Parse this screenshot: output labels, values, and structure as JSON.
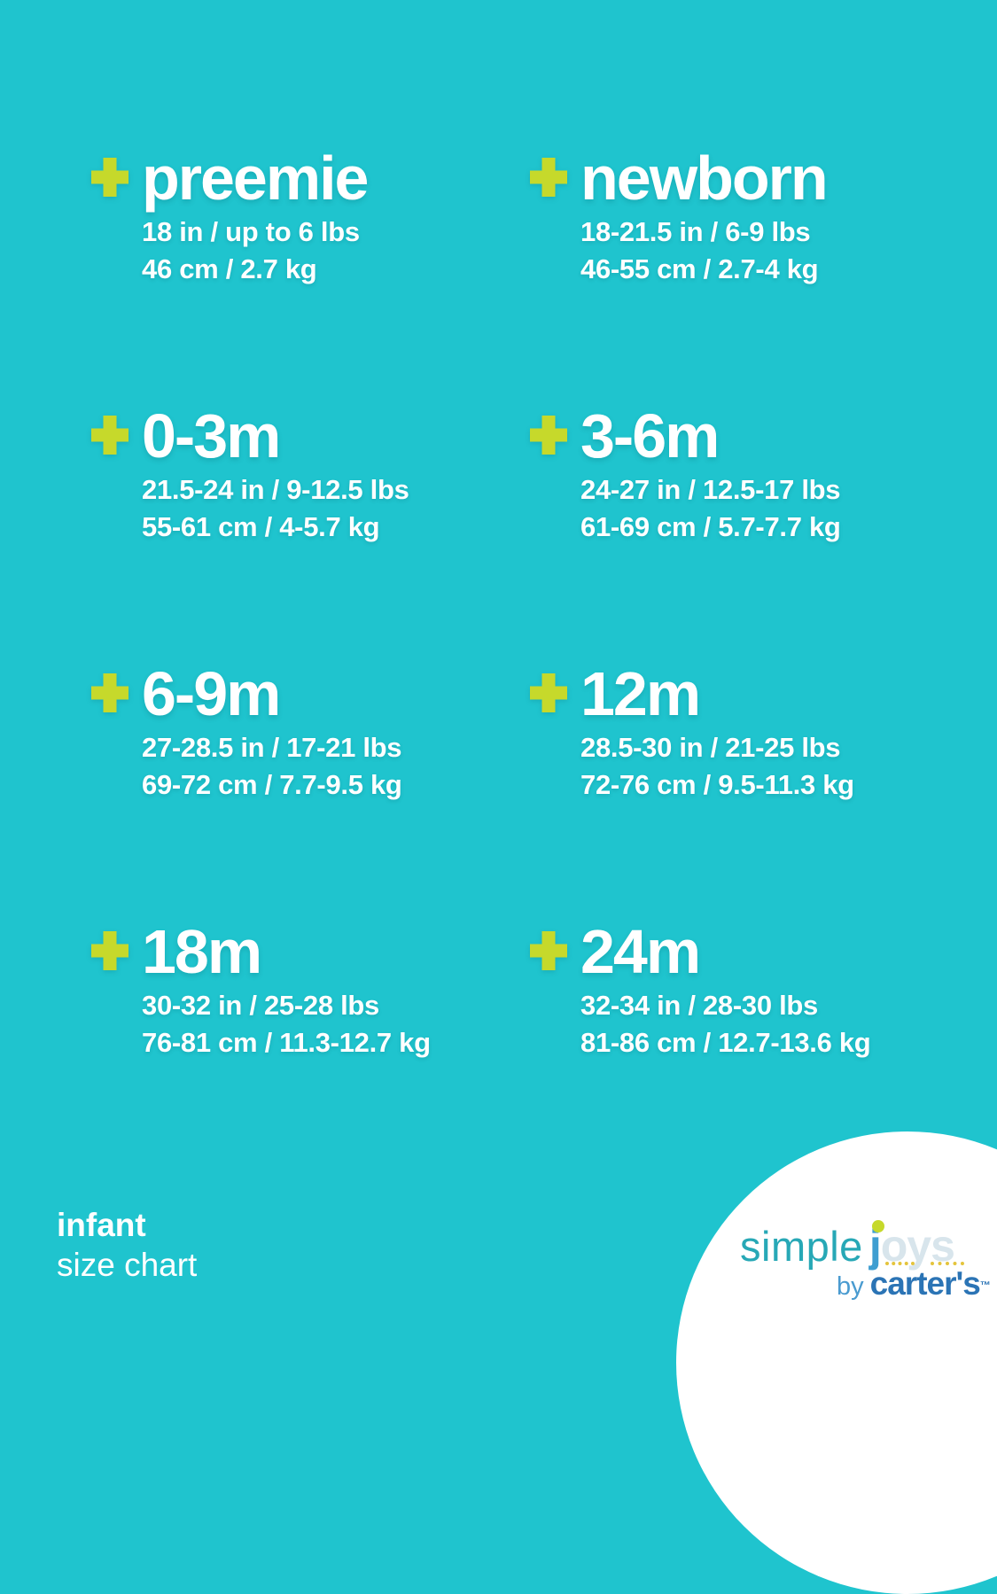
{
  "colors": {
    "background": "#1fc4ce",
    "accent": "#c6d92b",
    "text": "#ffffff",
    "logo_simple": "#27a8b6",
    "logo_j": "#3f9ed1",
    "logo_oys": "#d8e5ec",
    "logo_dots": "#e4c43c",
    "logo_by": "#4a9bd0",
    "logo_carters": "#2b74b5",
    "logo_circle": "#ffffff"
  },
  "icons": {
    "plus": "+"
  },
  "sizes": [
    {
      "label": "preemie",
      "imperial": "18 in / up to 6 lbs",
      "metric": "46 cm / 2.7 kg"
    },
    {
      "label": "newborn",
      "imperial": "18-21.5 in / 6-9 lbs",
      "metric": "46-55 cm / 2.7-4 kg"
    },
    {
      "label": "0-3m",
      "imperial": "21.5-24 in / 9-12.5 lbs",
      "metric": "55-61 cm / 4-5.7 kg"
    },
    {
      "label": "3-6m",
      "imperial": "24-27 in / 12.5-17 lbs",
      "metric": "61-69 cm / 5.7-7.7 kg"
    },
    {
      "label": "6-9m",
      "imperial": "27-28.5 in / 17-21 lbs",
      "metric": "69-72 cm / 7.7-9.5 kg"
    },
    {
      "label": "12m",
      "imperial": "28.5-30 in / 21-25 lbs",
      "metric": "72-76 cm / 9.5-11.3 kg"
    },
    {
      "label": "18m",
      "imperial": "30-32 in / 25-28 lbs",
      "metric": "76-81 cm / 11.3-12.7 kg"
    },
    {
      "label": "24m",
      "imperial": "32-34 in / 28-30 lbs",
      "metric": "81-86 cm / 12.7-13.6 kg"
    }
  ],
  "footer": {
    "category": "infant",
    "subtitle": "size chart"
  },
  "logo": {
    "simple": "simple",
    "joys": "joys",
    "by": "by",
    "carters": "carter's",
    "trademark": "™"
  }
}
